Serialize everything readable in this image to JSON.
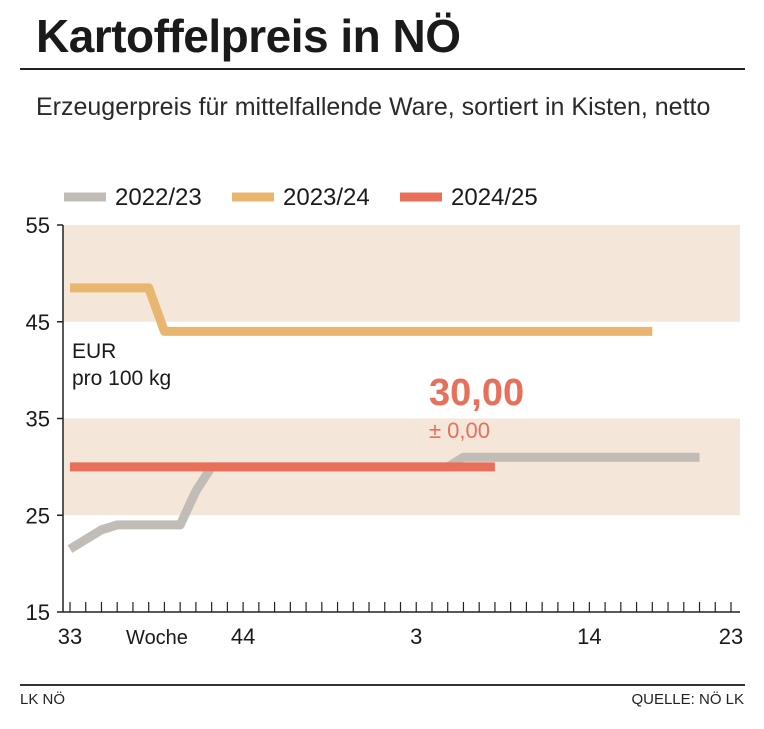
{
  "header": {
    "title": "Kartoffelpreis in NÖ",
    "subtitle": "Erzeugerpreis für mittelfallende Ware, sortiert in Kisten, netto"
  },
  "footer": {
    "left": "LK NÖ",
    "right": "QUELLE: NÖ LK"
  },
  "chart_data": {
    "type": "line",
    "unit_label": [
      "EUR",
      "pro 100 kg"
    ],
    "x_label": "Woche",
    "x_tick_labels": [
      {
        "week_index": 0,
        "label": "33"
      },
      {
        "week_index": 11,
        "label": "44"
      },
      {
        "week_index": 22,
        "label": "3"
      },
      {
        "week_index": 33,
        "label": "14"
      },
      {
        "week_index": 42,
        "label": "23"
      }
    ],
    "x_range": [
      0,
      42
    ],
    "ylim": [
      15,
      55
    ],
    "y_ticks": [
      15,
      25,
      35,
      45,
      55
    ],
    "shaded_bands": [
      [
        25,
        35
      ],
      [
        45,
        55
      ]
    ],
    "grid": false,
    "legend_position": "top",
    "series": [
      {
        "name": "2022/23",
        "color": "#c1bcb6",
        "points": [
          [
            0,
            21.5
          ],
          [
            2,
            23.5
          ],
          [
            3,
            24
          ],
          [
            7,
            24
          ],
          [
            8,
            27.5
          ],
          [
            9,
            30
          ],
          [
            24,
            30
          ],
          [
            25,
            31
          ],
          [
            40,
            31
          ]
        ]
      },
      {
        "name": "2023/24",
        "color": "#e8b66e",
        "points": [
          [
            0,
            48.5
          ],
          [
            5,
            48.5
          ],
          [
            6,
            44
          ],
          [
            37,
            44
          ]
        ]
      },
      {
        "name": "2024/25",
        "color": "#e8705a",
        "points": [
          [
            0,
            30
          ],
          [
            27,
            30
          ]
        ]
      }
    ],
    "annotation": {
      "value": "30,00",
      "change": "± 0,00",
      "color": "#e8705a"
    }
  }
}
